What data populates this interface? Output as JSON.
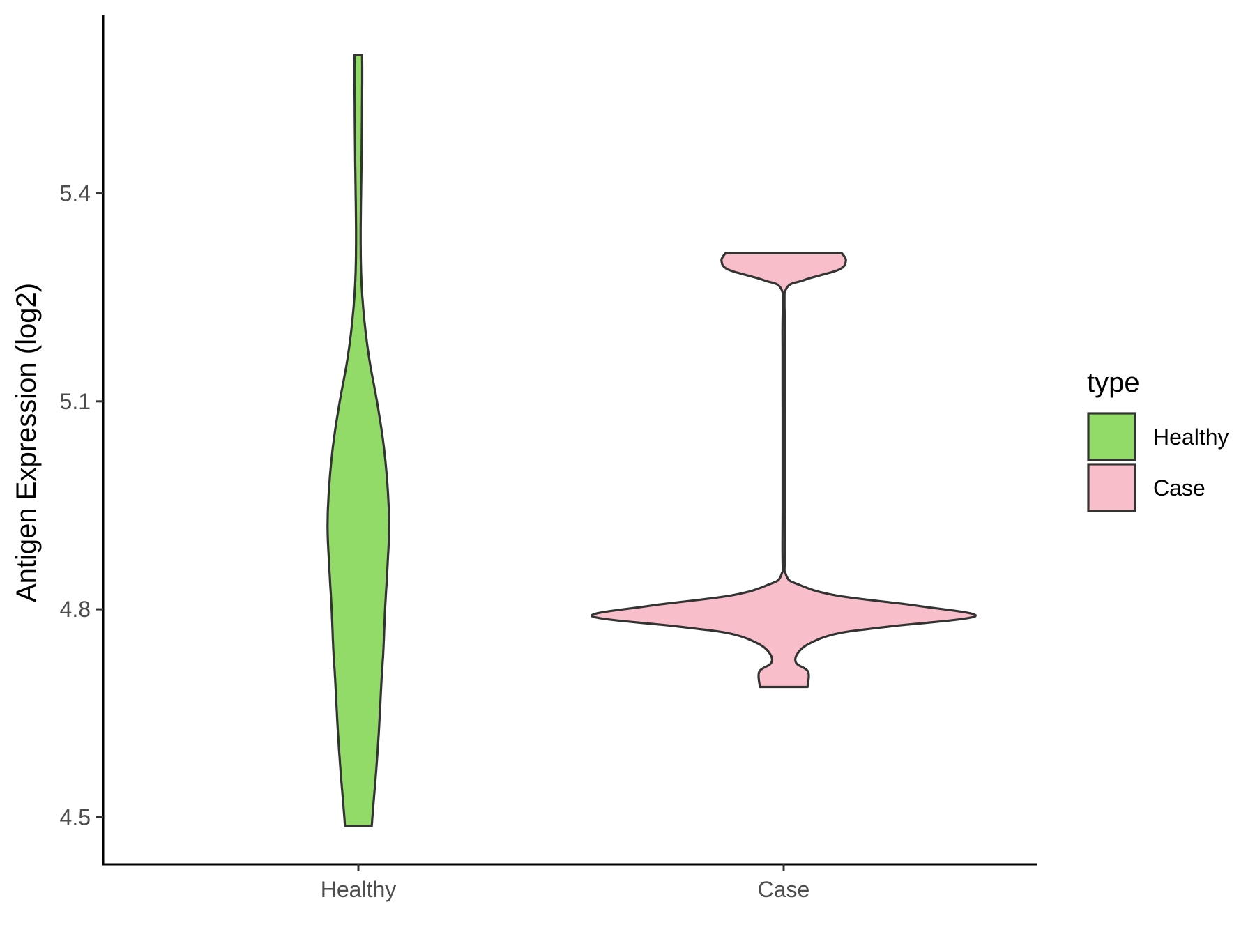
{
  "chart_data": {
    "type": "violin",
    "title": "",
    "xlabel": "",
    "ylabel": "Antigen Expression (log2)",
    "ylim": [
      4.432,
      5.657
    ],
    "y_ticks": [
      4.5,
      4.8,
      5.1,
      5.4
    ],
    "y_tick_labels": [
      "4.5",
      "4.8",
      "5.1",
      "5.4"
    ],
    "categories": [
      "Healthy",
      "Case"
    ],
    "legend": {
      "title": "type",
      "position": "right",
      "entries": [
        "Healthy",
        "Case"
      ]
    },
    "grid": false,
    "series": [
      {
        "name": "Healthy",
        "color": "#93DB68",
        "y_min": 4.487,
        "y_max": 5.6,
        "density_profile": [
          [
            4.487,
            0.23
          ],
          [
            4.52,
            0.26
          ],
          [
            4.56,
            0.3
          ],
          [
            4.62,
            0.35
          ],
          [
            4.7,
            0.4
          ],
          [
            4.74,
            0.43
          ],
          [
            4.8,
            0.46
          ],
          [
            4.86,
            0.5
          ],
          [
            4.92,
            0.53
          ],
          [
            4.98,
            0.5
          ],
          [
            5.04,
            0.43
          ],
          [
            5.1,
            0.32
          ],
          [
            5.16,
            0.19
          ],
          [
            5.22,
            0.1
          ],
          [
            5.28,
            0.05
          ],
          [
            5.35,
            0.04
          ],
          [
            5.45,
            0.055
          ],
          [
            5.55,
            0.065
          ],
          [
            5.6,
            0.065
          ]
        ]
      },
      {
        "name": "Case",
        "color": "#F8BFCA",
        "y_min": 4.688,
        "y_max": 5.314,
        "density_profile": [
          [
            4.688,
            0.41
          ],
          [
            4.71,
            0.42
          ],
          [
            4.722,
            0.22
          ],
          [
            4.735,
            0.23
          ],
          [
            4.75,
            0.43
          ],
          [
            4.765,
            0.92
          ],
          [
            4.775,
            1.8
          ],
          [
            4.79,
            3.3
          ],
          [
            4.805,
            2.3
          ],
          [
            4.82,
            0.9
          ],
          [
            4.835,
            0.28
          ],
          [
            4.85,
            0.04
          ],
          [
            4.9,
            0.02
          ],
          [
            5.2,
            0.02
          ],
          [
            5.26,
            0.03
          ],
          [
            5.275,
            0.35
          ],
          [
            5.29,
            0.95
          ],
          [
            5.303,
            1.07
          ],
          [
            5.314,
            1.0
          ]
        ]
      }
    ]
  }
}
